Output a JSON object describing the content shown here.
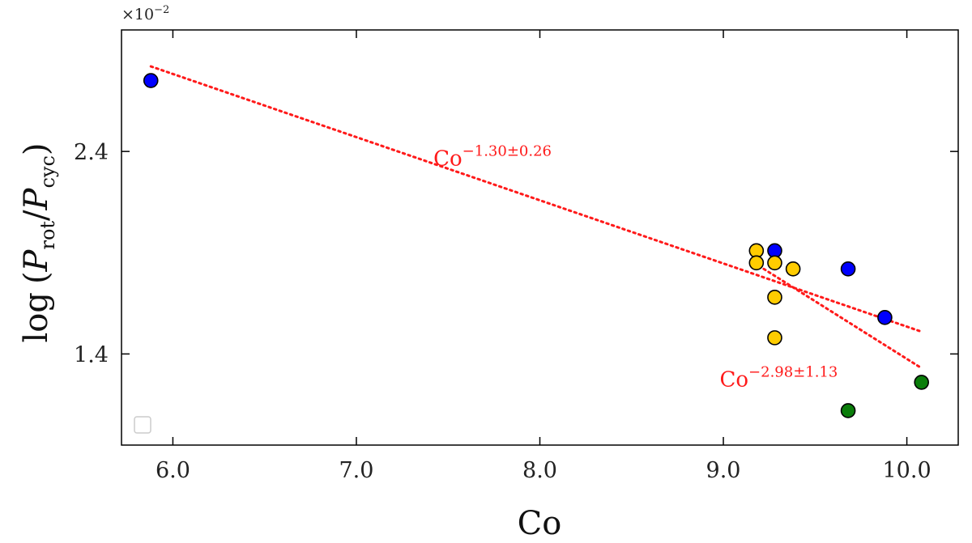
{
  "chart_data": {
    "type": "scatter",
    "title": "",
    "xlabel": "Co",
    "ylabel": {
      "prefix": "log",
      "p1": "P",
      "p1_sub": "rot",
      "slash": "/",
      "p2": "P",
      "p2_sub": "cyc"
    },
    "y_scale_factor": {
      "base": "×10",
      "exp": "−2"
    },
    "xlim": [
      5.72,
      10.28
    ],
    "ylim": [
      0.95,
      3.0
    ],
    "x_ticks": [
      {
        "value": 6.0,
        "label": "6.0"
      },
      {
        "value": 7.0,
        "label": "7.0"
      },
      {
        "value": 8.0,
        "label": "8.0"
      },
      {
        "value": 9.0,
        "label": "9.0"
      },
      {
        "value": 10.0,
        "label": "10.0"
      }
    ],
    "y_ticks": [
      {
        "value": 1.4,
        "label": "1.4"
      },
      {
        "value": 2.4,
        "label": "2.4"
      }
    ],
    "grid": false,
    "legend": {
      "placement": "lower-left",
      "entries": []
    },
    "series": [
      {
        "color": "#0000ff",
        "points": [
          {
            "x": 5.88,
            "y": 2.75
          },
          {
            "x": 9.28,
            "y": 1.91
          },
          {
            "x": 9.68,
            "y": 1.82
          },
          {
            "x": 9.88,
            "y": 1.58
          }
        ]
      },
      {
        "color": "#ffcc00",
        "points": [
          {
            "x": 9.18,
            "y": 1.91
          },
          {
            "x": 9.18,
            "y": 1.85
          },
          {
            "x": 9.28,
            "y": 1.85
          },
          {
            "x": 9.38,
            "y": 1.82
          },
          {
            "x": 9.28,
            "y": 1.68
          },
          {
            "x": 9.28,
            "y": 1.48
          }
        ]
      },
      {
        "color": "#0a7d0a",
        "points": [
          {
            "x": 10.08,
            "y": 1.26
          },
          {
            "x": 9.68,
            "y": 1.12
          }
        ]
      }
    ],
    "fits": [
      {
        "color": "#ff1a1a",
        "style": "dotted",
        "x": [
          5.88,
          10.08
        ],
        "y": [
          2.82,
          1.51
        ],
        "label": {
          "base": "Co",
          "exp": "−1.30±0.26",
          "x": 7.42,
          "y": 2.33
        }
      },
      {
        "color": "#ff1a1a",
        "style": "dotted",
        "x": [
          9.22,
          10.08
        ],
        "y": [
          1.82,
          1.33
        ],
        "label": {
          "base": "Co",
          "exp": "−2.98±1.13",
          "x": 8.98,
          "y": 1.24
        }
      }
    ]
  }
}
